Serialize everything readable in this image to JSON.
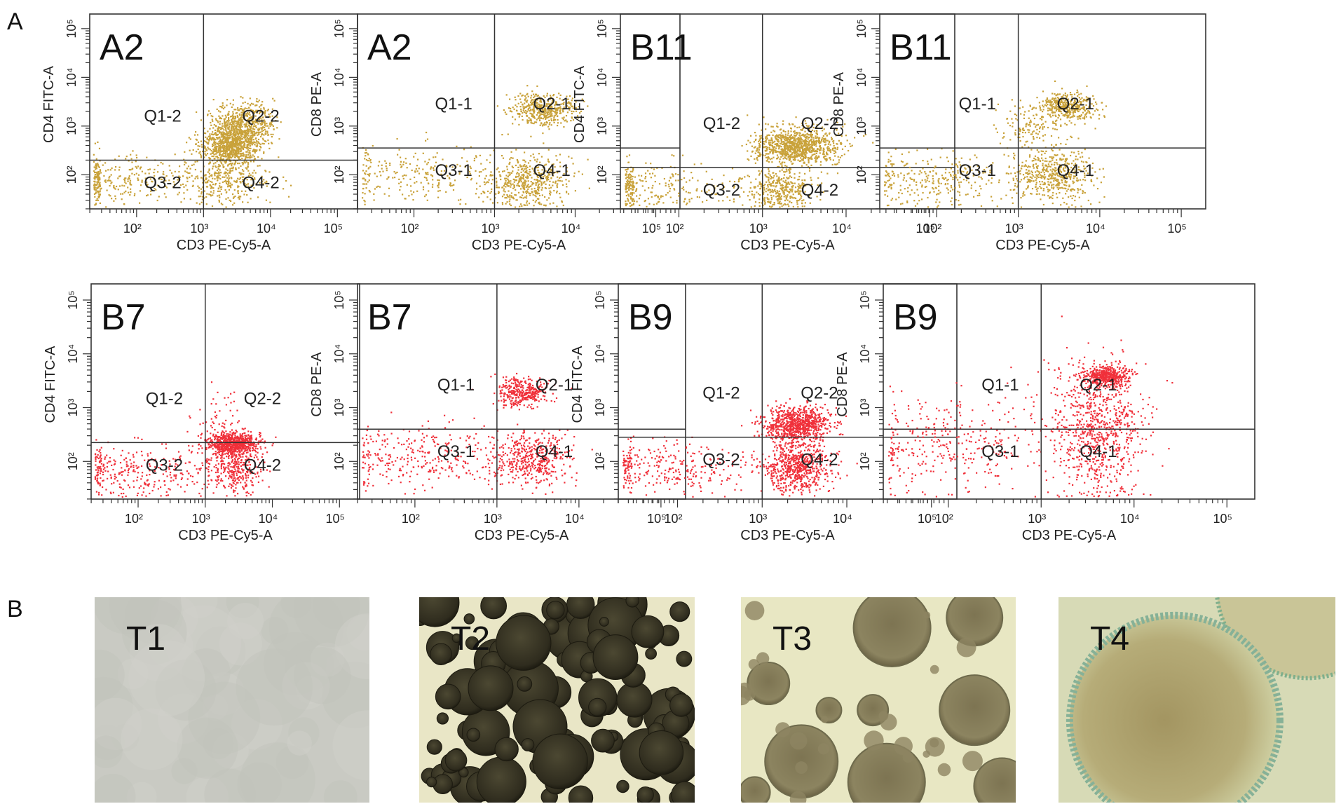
{
  "panel_labels": [
    "A",
    "B"
  ],
  "colors": {
    "gold": "#c9a23a",
    "red": "#f0303a",
    "axis": "#333333"
  },
  "chart_data": [
    {
      "type": "scatter",
      "title": "A2",
      "xlabel": "CD3 PE-Cy5-A",
      "ylabel": "CD4 FITC-A",
      "scale": "log",
      "xlim": [
        10,
        100000
      ],
      "ylim": [
        10,
        100000
      ],
      "quadrants": [
        "Q1-2",
        "Q2-2",
        "Q3-2",
        "Q4-2"
      ],
      "color": "gold",
      "x_ticks": [
        "10²",
        "10³",
        "10⁴",
        "10⁵"
      ],
      "y_ticks": [
        "10²",
        "10³",
        "10⁴",
        "10⁵"
      ]
    },
    {
      "type": "scatter",
      "title": "A2",
      "xlabel": "CD3 PE-Cy5-A",
      "ylabel": "CD8 PE-A",
      "scale": "log",
      "xlim": [
        10,
        100000
      ],
      "ylim": [
        10,
        100000
      ],
      "quadrants": [
        "Q1-1",
        "Q2-1",
        "Q3-1",
        "Q4-1"
      ],
      "color": "gold",
      "x_ticks": [
        "10²",
        "10³",
        "10⁴",
        "10⁵"
      ],
      "y_ticks": [
        "10²",
        "10³",
        "10⁴",
        "10⁵"
      ]
    },
    {
      "type": "scatter",
      "title": "B11",
      "xlabel": "CD3 PE-Cy5-A",
      "ylabel": "CD4 FITC-A",
      "scale": "log",
      "xlim": [
        10,
        100000
      ],
      "ylim": [
        10,
        100000
      ],
      "quadrants": [
        "Q1-2",
        "Q2-2",
        "Q3-2",
        "Q4-2"
      ],
      "color": "gold",
      "x_ticks": [
        "10²",
        "10³",
        "10⁴",
        "10⁵"
      ],
      "y_ticks": [
        "10²",
        "10³",
        "10⁴",
        "10⁵"
      ]
    },
    {
      "type": "scatter",
      "title": "B11",
      "xlabel": "CD3 PE-Cy5-A",
      "ylabel": "CD8 PE-A",
      "scale": "log",
      "xlim": [
        10,
        100000
      ],
      "ylim": [
        10,
        100000
      ],
      "quadrants": [
        "Q1-1",
        "Q2-1",
        "Q3-1",
        "Q4-1"
      ],
      "color": "gold",
      "x_ticks": [
        "10²",
        "10³",
        "10⁴",
        "10⁵"
      ],
      "y_ticks": [
        "10²",
        "10³",
        "10⁴",
        "10⁵"
      ]
    },
    {
      "type": "scatter",
      "title": "B7",
      "xlabel": "CD3 PE-Cy5-A",
      "ylabel": "CD4 FITC-A",
      "scale": "log",
      "xlim": [
        10,
        100000
      ],
      "ylim": [
        10,
        100000
      ],
      "quadrants": [
        "Q1-2",
        "Q2-2",
        "Q3-2",
        "Q4-2"
      ],
      "color": "red",
      "x_ticks": [
        "10²",
        "10³",
        "10⁴",
        "10⁵"
      ],
      "y_ticks": [
        "10²",
        "10³",
        "10⁴",
        "10⁵"
      ]
    },
    {
      "type": "scatter",
      "title": "B7",
      "xlabel": "CD3 PE-Cy5-A",
      "ylabel": "CD8 PE-A",
      "scale": "log",
      "xlim": [
        10,
        100000
      ],
      "ylim": [
        10,
        100000
      ],
      "quadrants": [
        "Q1-1",
        "Q2-1",
        "Q3-1",
        "Q4-1"
      ],
      "color": "red",
      "x_ticks": [
        "10²",
        "10³",
        "10⁴",
        "10⁵"
      ],
      "y_ticks": [
        "10²",
        "10³",
        "10⁴",
        "10⁵"
      ]
    },
    {
      "type": "scatter",
      "title": "B9",
      "xlabel": "CD3 PE-Cy5-A",
      "ylabel": "CD4 FITC-A",
      "scale": "log",
      "xlim": [
        10,
        100000
      ],
      "ylim": [
        10,
        100000
      ],
      "quadrants": [
        "Q1-2",
        "Q2-2",
        "Q3-2",
        "Q4-2"
      ],
      "color": "red",
      "x_ticks": [
        "10²",
        "10³",
        "10⁴",
        "10⁵"
      ],
      "y_ticks": [
        "10²",
        "10³",
        "10⁴",
        "10⁵"
      ]
    },
    {
      "type": "scatter",
      "title": "B9",
      "xlabel": "CD3 PE-Cy5-A",
      "ylabel": "CD8 PE-A",
      "scale": "log",
      "xlim": [
        10,
        100000
      ],
      "ylim": [
        10,
        100000
      ],
      "quadrants": [
        "Q1-1",
        "Q2-1",
        "Q3-1",
        "Q4-1"
      ],
      "color": "red",
      "x_ticks": [
        "10²",
        "10³",
        "10⁴",
        "10⁵"
      ],
      "y_ticks": [
        "10²",
        "10³",
        "10⁴",
        "10⁵"
      ]
    }
  ],
  "photos": [
    {
      "label": "T1",
      "style": "plain"
    },
    {
      "label": "T2",
      "style": "dark-spheres"
    },
    {
      "label": "T3",
      "style": "large-spheres"
    },
    {
      "label": "T4",
      "style": "zoom-sphere"
    }
  ]
}
